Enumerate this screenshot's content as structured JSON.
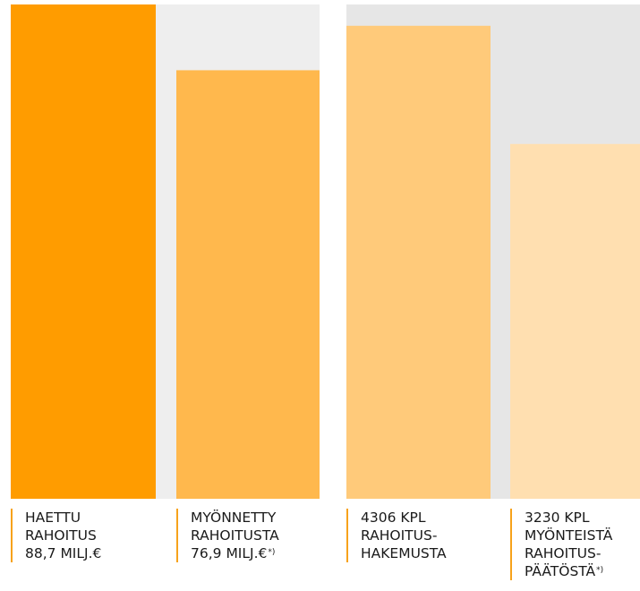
{
  "chart_data": [
    {
      "type": "bar",
      "categories": [
        "HAETTU RAHOITUS 88,7 MILJ.€",
        "MYÖNNETTY RAHOITUSTA 76,9 MILJ.€*)"
      ],
      "values": [
        88.7,
        76.9
      ],
      "unit": "MILJ.€",
      "ylim": [
        0,
        88.7
      ],
      "colors": [
        "#ff9c00",
        "#ffb84d"
      ],
      "panel_color": "#eeeeee",
      "labels": [
        {
          "lines": [
            "HAETTU",
            "RAHOITUS",
            "88,7 MILJ.€"
          ],
          "note": ""
        },
        {
          "lines": [
            "MYÖNNETTY",
            "RAHOITUSTA",
            "76,9 MILJ.€"
          ],
          "note": "*)"
        }
      ]
    },
    {
      "type": "bar",
      "categories": [
        "4306 KPL RAHOITUSHAKEMUSTA",
        "3230 KPL MYÖNTEISTÄ RAHOITUSPÄÄTÖSTÄ*)"
      ],
      "values": [
        4306,
        3230
      ],
      "unit": "KPL",
      "ylim": [
        0,
        4500
      ],
      "colors": [
        "#ffca7a",
        "#ffdfb0"
      ],
      "panel_color": "#e6e6e6",
      "labels": [
        {
          "lines": [
            "4306 KPL",
            "RAHOITUS-",
            "HAKEMUSTA"
          ],
          "note": ""
        },
        {
          "lines": [
            "3230 KPL",
            "MYÖNTEISTÄ",
            "RAHOITUS-",
            "PÄÄTÖSTÄ"
          ],
          "note": "*)"
        }
      ]
    }
  ],
  "label_border_color": "#f7a21b"
}
